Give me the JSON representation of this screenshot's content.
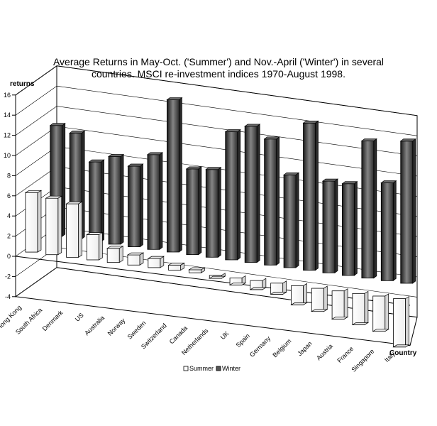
{
  "chart_data": {
    "type": "bar",
    "title_line1": "Average Returns in May-Oct. ('Summer') and Nov.-April ('Winter') in several",
    "title_line2": "countries. MSCI re-investment indices 1970-August 1998.",
    "ylabel": "returns",
    "xlabel": "Country",
    "ylim": [
      -4,
      16
    ],
    "yticks": [
      -4,
      -2,
      0,
      2,
      4,
      6,
      8,
      10,
      12,
      14,
      16
    ],
    "categories": [
      "Hong Kong",
      "South Africa",
      "Denmark",
      "US",
      "Australia",
      "Norway",
      "Sweden",
      "Switzerland",
      "Canada",
      "Netherlands",
      "UK",
      "Spain",
      "Germany",
      "Belgium",
      "Japan",
      "Austria",
      "France",
      "Singapore",
      "Italy"
    ],
    "series": [
      {
        "name": "Summer",
        "color": "#ffffff",
        "values": [
          5.9,
          5.6,
          5.3,
          2.5,
          1.4,
          1.0,
          0.9,
          0.5,
          0.3,
          -0.3,
          -0.7,
          -0.9,
          -1.1,
          -1.9,
          -2.3,
          -2.8,
          -3.1,
          -3.5,
          -4.8
        ]
      },
      {
        "name": "Winter",
        "color": "#555555",
        "values": [
          11.0,
          10.5,
          7.9,
          8.7,
          8.0,
          9.4,
          15.1,
          8.5,
          8.7,
          12.7,
          13.5,
          12.5,
          9.2,
          14.6,
          9.1,
          9.1,
          13.6,
          9.7,
          14.1
        ]
      }
    ],
    "legend_position": "bottom",
    "grid": true
  }
}
